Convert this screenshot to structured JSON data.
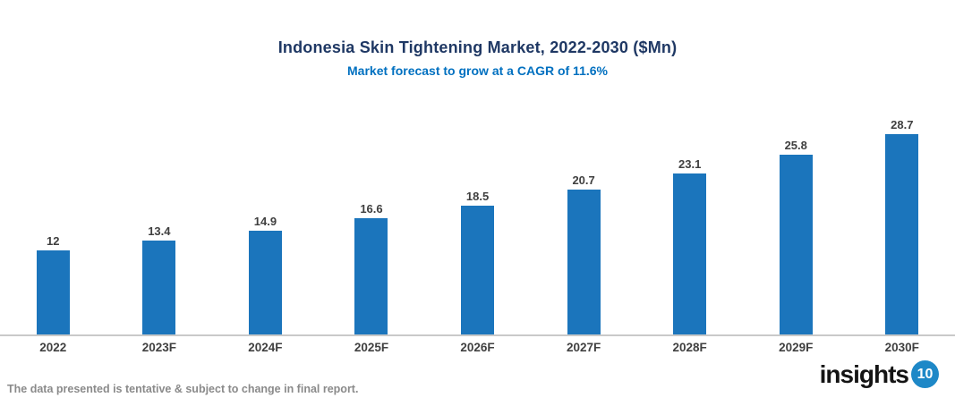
{
  "header": {
    "title": "Indonesia Skin Tightening Market, 2022-2030 ($Mn)",
    "subtitle": "Market forecast to grow at a CAGR of 11.6%"
  },
  "chart_data": {
    "type": "bar",
    "title": "Indonesia Skin Tightening Market, 2022-2030 ($Mn)",
    "subtitle": "Market forecast to grow at a CAGR of 11.6%",
    "categories": [
      "2022",
      "2023F",
      "2024F",
      "2025F",
      "2026F",
      "2027F",
      "2028F",
      "2029F",
      "2030F"
    ],
    "values": [
      12,
      13.4,
      14.9,
      16.6,
      18.5,
      20.7,
      23.1,
      25.8,
      28.7
    ],
    "data_labels": [
      "12",
      "13.4",
      "14.9",
      "16.6",
      "18.5",
      "20.7",
      "23.1",
      "25.8",
      "28.7"
    ],
    "xlabel": "",
    "ylabel": "",
    "ylim": [
      0,
      30
    ],
    "grid": false,
    "legend_position": "none",
    "bar_color": "#1B75BC"
  },
  "footer": {
    "note": "The data presented is tentative & subject to change in final report.",
    "logo_text": "insights",
    "logo_badge": "10"
  },
  "colors": {
    "title": "#1F3864",
    "subtitle": "#0070C0",
    "bar": "#1B75BC",
    "value_label": "#3F3F3F",
    "axis_line": "#C9C9C9",
    "x_label": "#404040",
    "note": "#8A8A8A",
    "logo_badge_bg": "#1E88C7"
  }
}
